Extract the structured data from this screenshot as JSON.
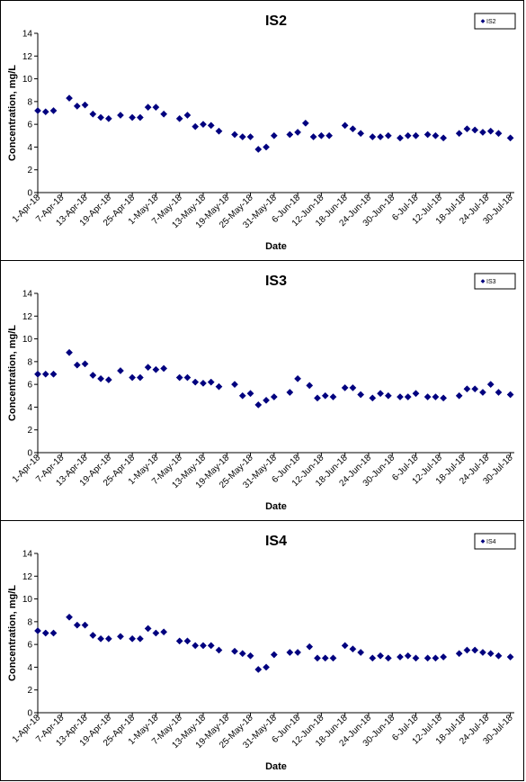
{
  "x_labels": [
    "1-Apr-18",
    "7-Apr-18",
    "13-Apr-18",
    "19-Apr-18",
    "25-Apr-18",
    "1-May-18",
    "7-May-18",
    "13-May-18",
    "19-May-18",
    "25-May-18",
    "31-May-18",
    "6-Jun-18",
    "12-Jun-18",
    "18-Jun-18",
    "24-Jun-18",
    "30-Jun-18",
    "6-Jul-18",
    "12-Jul-18",
    "18-Jul-18",
    "24-Jul-18",
    "30-Jul-18"
  ],
  "chart_data": [
    {
      "type": "scatter",
      "title": "IS2",
      "xlabel": "Date",
      "ylabel": "Concentration, mg/L",
      "xlim": [
        "2018-04-01",
        "2018-07-31"
      ],
      "ylim": [
        0,
        14
      ],
      "yticks": [
        0,
        2,
        4,
        6,
        8,
        10,
        12,
        14
      ],
      "legend": "top-right",
      "series": [
        {
          "name": "IS2",
          "color": "#00007f",
          "points": [
            {
              "x": "2018-04-01",
              "y": 7.2
            },
            {
              "x": "2018-04-03",
              "y": 7.1
            },
            {
              "x": "2018-04-05",
              "y": 7.2
            },
            {
              "x": "2018-04-09",
              "y": 8.3
            },
            {
              "x": "2018-04-11",
              "y": 7.6
            },
            {
              "x": "2018-04-13",
              "y": 7.7
            },
            {
              "x": "2018-04-15",
              "y": 6.9
            },
            {
              "x": "2018-04-17",
              "y": 6.6
            },
            {
              "x": "2018-04-19",
              "y": 6.5
            },
            {
              "x": "2018-04-22",
              "y": 6.8
            },
            {
              "x": "2018-04-25",
              "y": 6.6
            },
            {
              "x": "2018-04-27",
              "y": 6.6
            },
            {
              "x": "2018-04-29",
              "y": 7.5
            },
            {
              "x": "2018-05-01",
              "y": 7.5
            },
            {
              "x": "2018-05-03",
              "y": 6.9
            },
            {
              "x": "2018-05-07",
              "y": 6.5
            },
            {
              "x": "2018-05-09",
              "y": 6.8
            },
            {
              "x": "2018-05-11",
              "y": 5.8
            },
            {
              "x": "2018-05-13",
              "y": 6.0
            },
            {
              "x": "2018-05-15",
              "y": 5.9
            },
            {
              "x": "2018-05-17",
              "y": 5.4
            },
            {
              "x": "2018-05-21",
              "y": 5.1
            },
            {
              "x": "2018-05-23",
              "y": 4.9
            },
            {
              "x": "2018-05-25",
              "y": 4.9
            },
            {
              "x": "2018-05-27",
              "y": 3.8
            },
            {
              "x": "2018-05-29",
              "y": 4.0
            },
            {
              "x": "2018-05-31",
              "y": 5.0
            },
            {
              "x": "2018-06-04",
              "y": 5.1
            },
            {
              "x": "2018-06-06",
              "y": 5.3
            },
            {
              "x": "2018-06-08",
              "y": 6.1
            },
            {
              "x": "2018-06-10",
              "y": 4.9
            },
            {
              "x": "2018-06-12",
              "y": 5.0
            },
            {
              "x": "2018-06-14",
              "y": 5.0
            },
            {
              "x": "2018-06-18",
              "y": 5.9
            },
            {
              "x": "2018-06-20",
              "y": 5.6
            },
            {
              "x": "2018-06-22",
              "y": 5.2
            },
            {
              "x": "2018-06-25",
              "y": 4.9
            },
            {
              "x": "2018-06-27",
              "y": 4.9
            },
            {
              "x": "2018-06-29",
              "y": 5.0
            },
            {
              "x": "2018-07-02",
              "y": 4.8
            },
            {
              "x": "2018-07-04",
              "y": 5.0
            },
            {
              "x": "2018-07-06",
              "y": 5.0
            },
            {
              "x": "2018-07-09",
              "y": 5.1
            },
            {
              "x": "2018-07-11",
              "y": 5.0
            },
            {
              "x": "2018-07-13",
              "y": 4.8
            },
            {
              "x": "2018-07-17",
              "y": 5.2
            },
            {
              "x": "2018-07-19",
              "y": 5.6
            },
            {
              "x": "2018-07-21",
              "y": 5.5
            },
            {
              "x": "2018-07-23",
              "y": 5.3
            },
            {
              "x": "2018-07-25",
              "y": 5.4
            },
            {
              "x": "2018-07-27",
              "y": 5.2
            },
            {
              "x": "2018-07-30",
              "y": 4.8
            }
          ]
        }
      ]
    },
    {
      "type": "scatter",
      "title": "IS3",
      "xlabel": "Date",
      "ylabel": "Concentration, mg/L",
      "xlim": [
        "2018-04-01",
        "2018-07-31"
      ],
      "ylim": [
        0,
        14
      ],
      "yticks": [
        0,
        2,
        4,
        6,
        8,
        10,
        12,
        14
      ],
      "legend": "top-right",
      "series": [
        {
          "name": "IS3",
          "color": "#00007f",
          "points": [
            {
              "x": "2018-04-01",
              "y": 6.9
            },
            {
              "x": "2018-04-03",
              "y": 6.9
            },
            {
              "x": "2018-04-05",
              "y": 6.9
            },
            {
              "x": "2018-04-09",
              "y": 8.8
            },
            {
              "x": "2018-04-11",
              "y": 7.7
            },
            {
              "x": "2018-04-13",
              "y": 7.8
            },
            {
              "x": "2018-04-15",
              "y": 6.8
            },
            {
              "x": "2018-04-17",
              "y": 6.5
            },
            {
              "x": "2018-04-19",
              "y": 6.4
            },
            {
              "x": "2018-04-22",
              "y": 7.2
            },
            {
              "x": "2018-04-25",
              "y": 6.6
            },
            {
              "x": "2018-04-27",
              "y": 6.6
            },
            {
              "x": "2018-04-29",
              "y": 7.5
            },
            {
              "x": "2018-05-01",
              "y": 7.3
            },
            {
              "x": "2018-05-03",
              "y": 7.4
            },
            {
              "x": "2018-05-07",
              "y": 6.6
            },
            {
              "x": "2018-05-09",
              "y": 6.6
            },
            {
              "x": "2018-05-11",
              "y": 6.2
            },
            {
              "x": "2018-05-13",
              "y": 6.1
            },
            {
              "x": "2018-05-15",
              "y": 6.2
            },
            {
              "x": "2018-05-17",
              "y": 5.8
            },
            {
              "x": "2018-05-21",
              "y": 6.0
            },
            {
              "x": "2018-05-23",
              "y": 5.0
            },
            {
              "x": "2018-05-25",
              "y": 5.2
            },
            {
              "x": "2018-05-27",
              "y": 4.2
            },
            {
              "x": "2018-05-29",
              "y": 4.6
            },
            {
              "x": "2018-05-31",
              "y": 4.9
            },
            {
              "x": "2018-06-04",
              "y": 5.3
            },
            {
              "x": "2018-06-06",
              "y": 6.5
            },
            {
              "x": "2018-06-09",
              "y": 5.9
            },
            {
              "x": "2018-06-11",
              "y": 4.8
            },
            {
              "x": "2018-06-13",
              "y": 5.0
            },
            {
              "x": "2018-06-15",
              "y": 4.9
            },
            {
              "x": "2018-06-18",
              "y": 5.7
            },
            {
              "x": "2018-06-20",
              "y": 5.7
            },
            {
              "x": "2018-06-22",
              "y": 5.1
            },
            {
              "x": "2018-06-25",
              "y": 4.8
            },
            {
              "x": "2018-06-27",
              "y": 5.2
            },
            {
              "x": "2018-06-29",
              "y": 5.0
            },
            {
              "x": "2018-07-02",
              "y": 4.9
            },
            {
              "x": "2018-07-04",
              "y": 4.9
            },
            {
              "x": "2018-07-06",
              "y": 5.2
            },
            {
              "x": "2018-07-09",
              "y": 4.9
            },
            {
              "x": "2018-07-11",
              "y": 4.9
            },
            {
              "x": "2018-07-13",
              "y": 4.8
            },
            {
              "x": "2018-07-17",
              "y": 5.0
            },
            {
              "x": "2018-07-19",
              "y": 5.6
            },
            {
              "x": "2018-07-21",
              "y": 5.6
            },
            {
              "x": "2018-07-23",
              "y": 5.3
            },
            {
              "x": "2018-07-25",
              "y": 6.0
            },
            {
              "x": "2018-07-27",
              "y": 5.3
            },
            {
              "x": "2018-07-30",
              "y": 5.1
            }
          ]
        }
      ]
    },
    {
      "type": "scatter",
      "title": "IS4",
      "xlabel": "Date",
      "ylabel": "Concentration, mg/L",
      "xlim": [
        "2018-04-01",
        "2018-07-31"
      ],
      "ylim": [
        0,
        14
      ],
      "yticks": [
        0,
        2,
        4,
        6,
        8,
        10,
        12,
        14
      ],
      "legend": "top-right",
      "series": [
        {
          "name": "IS4",
          "color": "#00007f",
          "points": [
            {
              "x": "2018-04-01",
              "y": 7.2
            },
            {
              "x": "2018-04-03",
              "y": 7.0
            },
            {
              "x": "2018-04-05",
              "y": 7.0
            },
            {
              "x": "2018-04-09",
              "y": 8.4
            },
            {
              "x": "2018-04-11",
              "y": 7.7
            },
            {
              "x": "2018-04-13",
              "y": 7.7
            },
            {
              "x": "2018-04-15",
              "y": 6.8
            },
            {
              "x": "2018-04-17",
              "y": 6.5
            },
            {
              "x": "2018-04-19",
              "y": 6.5
            },
            {
              "x": "2018-04-22",
              "y": 6.7
            },
            {
              "x": "2018-04-25",
              "y": 6.5
            },
            {
              "x": "2018-04-27",
              "y": 6.5
            },
            {
              "x": "2018-04-29",
              "y": 7.4
            },
            {
              "x": "2018-05-01",
              "y": 7.0
            },
            {
              "x": "2018-05-03",
              "y": 7.1
            },
            {
              "x": "2018-05-07",
              "y": 6.3
            },
            {
              "x": "2018-05-09",
              "y": 6.3
            },
            {
              "x": "2018-05-11",
              "y": 5.9
            },
            {
              "x": "2018-05-13",
              "y": 5.9
            },
            {
              "x": "2018-05-15",
              "y": 5.9
            },
            {
              "x": "2018-05-17",
              "y": 5.5
            },
            {
              "x": "2018-05-21",
              "y": 5.4
            },
            {
              "x": "2018-05-23",
              "y": 5.2
            },
            {
              "x": "2018-05-25",
              "y": 5.0
            },
            {
              "x": "2018-05-27",
              "y": 3.8
            },
            {
              "x": "2018-05-29",
              "y": 4.0
            },
            {
              "x": "2018-05-31",
              "y": 5.1
            },
            {
              "x": "2018-06-04",
              "y": 5.3
            },
            {
              "x": "2018-06-06",
              "y": 5.3
            },
            {
              "x": "2018-06-09",
              "y": 5.8
            },
            {
              "x": "2018-06-11",
              "y": 4.8
            },
            {
              "x": "2018-06-13",
              "y": 4.8
            },
            {
              "x": "2018-06-15",
              "y": 4.8
            },
            {
              "x": "2018-06-18",
              "y": 5.9
            },
            {
              "x": "2018-06-20",
              "y": 5.6
            },
            {
              "x": "2018-06-22",
              "y": 5.3
            },
            {
              "x": "2018-06-25",
              "y": 4.8
            },
            {
              "x": "2018-06-27",
              "y": 5.0
            },
            {
              "x": "2018-06-29",
              "y": 4.8
            },
            {
              "x": "2018-07-02",
              "y": 4.9
            },
            {
              "x": "2018-07-04",
              "y": 5.0
            },
            {
              "x": "2018-07-06",
              "y": 4.8
            },
            {
              "x": "2018-07-09",
              "y": 4.8
            },
            {
              "x": "2018-07-11",
              "y": 4.8
            },
            {
              "x": "2018-07-13",
              "y": 4.9
            },
            {
              "x": "2018-07-17",
              "y": 5.2
            },
            {
              "x": "2018-07-19",
              "y": 5.5
            },
            {
              "x": "2018-07-21",
              "y": 5.5
            },
            {
              "x": "2018-07-23",
              "y": 5.3
            },
            {
              "x": "2018-07-25",
              "y": 5.2
            },
            {
              "x": "2018-07-27",
              "y": 5.0
            },
            {
              "x": "2018-07-30",
              "y": 4.9
            }
          ]
        }
      ]
    }
  ]
}
